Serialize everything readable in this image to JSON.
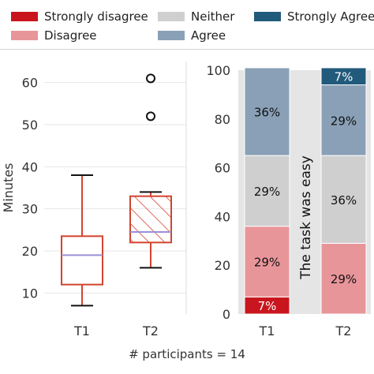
{
  "legend": {
    "items": [
      {
        "label": "Strongly disagree",
        "color": "#c9161e"
      },
      {
        "label": "Disagree",
        "color": "#e8959a"
      },
      {
        "label": "Neither",
        "color": "#cfcfcf"
      },
      {
        "label": "Agree",
        "color": "#8aa0b6"
      },
      {
        "label": "Strongly Agree",
        "color": "#215a7b"
      }
    ]
  },
  "footer": "# participants = 14",
  "chart_data": [
    {
      "type": "box",
      "ylabel": "Minutes",
      "ylim": [
        5,
        65
      ],
      "yticks": [
        10,
        20,
        30,
        40,
        50,
        60
      ],
      "categories": [
        "T1",
        "T2"
      ],
      "boxes": [
        {
          "name": "T1",
          "whisker_low": 7,
          "q1": 12,
          "median": 19,
          "q3": 23.5,
          "whisker_high": 38,
          "outliers": [],
          "hatched": false
        },
        {
          "name": "T2",
          "whisker_low": 16,
          "q1": 22,
          "median": 24.5,
          "q3": 33,
          "whisker_high": 34,
          "outliers": [
            52,
            61
          ],
          "hatched": true
        }
      ],
      "colors": {
        "box": "#d2442f",
        "median": "#9b8fd6"
      }
    },
    {
      "type": "bar",
      "stacked": true,
      "ylim": [
        0,
        100
      ],
      "yticks": [
        0,
        20,
        40,
        60,
        80,
        100
      ],
      "categories": [
        "T1",
        "T2"
      ],
      "annotation": "The task was easy",
      "series": [
        {
          "name": "Strongly disagree",
          "values": [
            7,
            0
          ],
          "labels": [
            "7%",
            ""
          ]
        },
        {
          "name": "Disagree",
          "values": [
            29,
            29
          ],
          "labels": [
            "29%",
            "29%"
          ]
        },
        {
          "name": "Neither",
          "values": [
            29,
            36
          ],
          "labels": [
            "29%",
            "36%"
          ]
        },
        {
          "name": "Agree",
          "values": [
            36,
            29
          ],
          "labels": [
            "36%",
            "29%"
          ]
        },
        {
          "name": "Strongly Agree",
          "values": [
            0,
            7
          ],
          "labels": [
            "",
            "7%"
          ]
        }
      ]
    }
  ]
}
